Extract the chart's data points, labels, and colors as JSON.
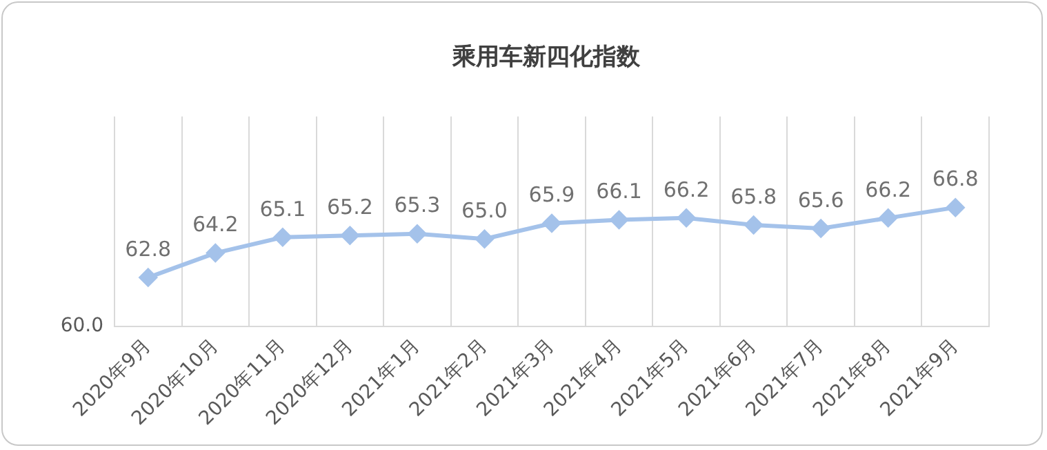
{
  "chart_data": {
    "type": "line",
    "title": "乘用车新四化指数",
    "categories": [
      "2020年9月",
      "2020年10月",
      "2020年11月",
      "2020年12月",
      "2021年1月",
      "2021年2月",
      "2021年3月",
      "2021年4月",
      "2021年5月",
      "2021年6月",
      "2021年7月",
      "2021年8月",
      "2021年9月"
    ],
    "series": [
      {
        "color": "#a4c2ea",
        "values": [
          62.8,
          64.2,
          65.1,
          65.2,
          65.3,
          65.0,
          65.9,
          66.1,
          66.2,
          65.8,
          65.6,
          66.2,
          66.8
        ],
        "value_labels": [
          "62.8",
          "64.2",
          "65.1",
          "65.2",
          "65.3",
          "65.0",
          "65.9",
          "66.1",
          "66.2",
          "65.8",
          "65.6",
          "66.2",
          "66.8"
        ]
      }
    ],
    "ylim": [
      60,
      72
    ],
    "annotations": [
      "60.0"
    ],
    "grid": "x",
    "legend": false,
    "marker": "diamond",
    "line_style": "solid"
  }
}
